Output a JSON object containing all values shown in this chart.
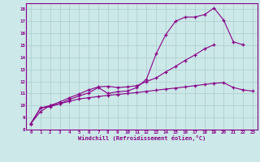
{
  "xlabel": "Windchill (Refroidissement éolien,°C)",
  "bg_color": "#cce8e8",
  "grid_color": "#aacccc",
  "line_color": "#880088",
  "xlim": [
    -0.5,
    23.5
  ],
  "ylim": [
    8,
    18.5
  ],
  "yticks": [
    8,
    9,
    10,
    11,
    12,
    13,
    14,
    15,
    16,
    17,
    18
  ],
  "xticks": [
    0,
    1,
    2,
    3,
    4,
    5,
    6,
    7,
    8,
    9,
    10,
    11,
    12,
    13,
    14,
    15,
    16,
    17,
    18,
    19,
    20,
    21,
    22,
    23
  ],
  "line1_x": [
    0,
    1,
    2,
    3,
    4,
    5,
    6,
    7,
    8,
    9,
    10,
    11,
    12,
    13,
    14,
    15,
    16,
    17,
    18,
    19,
    20,
    21,
    22
  ],
  "line1_y": [
    8.5,
    9.8,
    9.9,
    10.15,
    10.5,
    10.8,
    11.05,
    11.5,
    11.0,
    11.15,
    11.2,
    11.5,
    12.2,
    14.3,
    15.9,
    17.0,
    17.35,
    17.35,
    17.55,
    18.1,
    17.1,
    15.3,
    15.05
  ],
  "line2_x": [
    0,
    1,
    2,
    3,
    4,
    5,
    6,
    7,
    8,
    9,
    10,
    11,
    12,
    13,
    14,
    15,
    16,
    17,
    18,
    19
  ],
  "line2_y": [
    8.5,
    9.5,
    10.0,
    10.3,
    10.65,
    10.95,
    11.3,
    11.55,
    11.6,
    11.5,
    11.55,
    11.65,
    12.0,
    12.3,
    12.8,
    13.25,
    13.75,
    14.2,
    14.7,
    15.05
  ],
  "line3_x": [
    0,
    1,
    2,
    3,
    4,
    5,
    6,
    7,
    8,
    9,
    10,
    11,
    12,
    13,
    14,
    15,
    16,
    17,
    18,
    19,
    20,
    21,
    22,
    23
  ],
  "line3_y": [
    8.5,
    9.8,
    10.0,
    10.15,
    10.35,
    10.55,
    10.65,
    10.75,
    10.85,
    10.92,
    11.0,
    11.08,
    11.18,
    11.27,
    11.37,
    11.45,
    11.55,
    11.65,
    11.75,
    11.85,
    11.9,
    11.5,
    11.3,
    11.2
  ]
}
